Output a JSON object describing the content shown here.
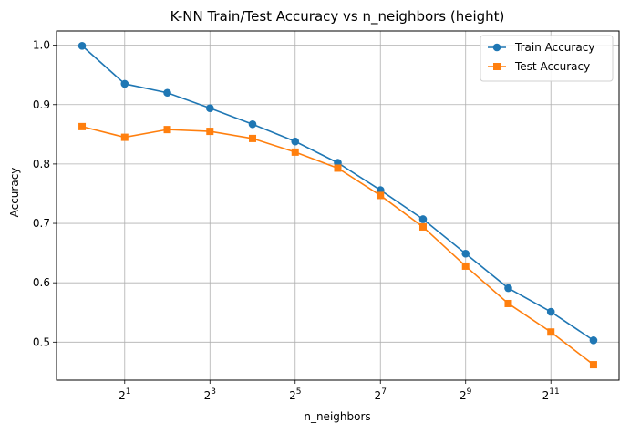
{
  "chart_data": {
    "type": "line",
    "title": "K-NN Train/Test Accuracy vs n_neighbors (height)",
    "xlabel": "n_neighbors",
    "ylabel": "Accuracy",
    "xscale": "log2",
    "x": [
      1,
      2,
      4,
      8,
      16,
      32,
      64,
      128,
      256,
      512,
      1024,
      2048,
      4096
    ],
    "xticks": [
      {
        "value": 2,
        "base": "2",
        "exp": "1"
      },
      {
        "value": 8,
        "base": "2",
        "exp": "3"
      },
      {
        "value": 32,
        "base": "2",
        "exp": "5"
      },
      {
        "value": 128,
        "base": "2",
        "exp": "7"
      },
      {
        "value": 512,
        "base": "2",
        "exp": "9"
      },
      {
        "value": 2048,
        "base": "2",
        "exp": "11"
      }
    ],
    "ylim": [
      0.436,
      1.024
    ],
    "yticks": [
      {
        "value": 0.5,
        "label": "0.5"
      },
      {
        "value": 0.6,
        "label": "0.6"
      },
      {
        "value": 0.7,
        "label": "0.7"
      },
      {
        "value": 0.8,
        "label": "0.8"
      },
      {
        "value": 0.9,
        "label": "0.9"
      },
      {
        "value": 1.0,
        "label": "1.0"
      }
    ],
    "grid": true,
    "legend_position": "top-right",
    "series": [
      {
        "name": "Train Accuracy",
        "color": "#1f77b4",
        "marker": "circle",
        "values": [
          0.999,
          0.935,
          0.92,
          0.894,
          0.867,
          0.838,
          0.802,
          0.756,
          0.707,
          0.649,
          0.591,
          0.551,
          0.503
        ]
      },
      {
        "name": "Test Accuracy",
        "color": "#ff7f0e",
        "marker": "square",
        "values": [
          0.863,
          0.845,
          0.858,
          0.855,
          0.843,
          0.82,
          0.793,
          0.747,
          0.694,
          0.628,
          0.565,
          0.517,
          0.462
        ]
      }
    ]
  }
}
